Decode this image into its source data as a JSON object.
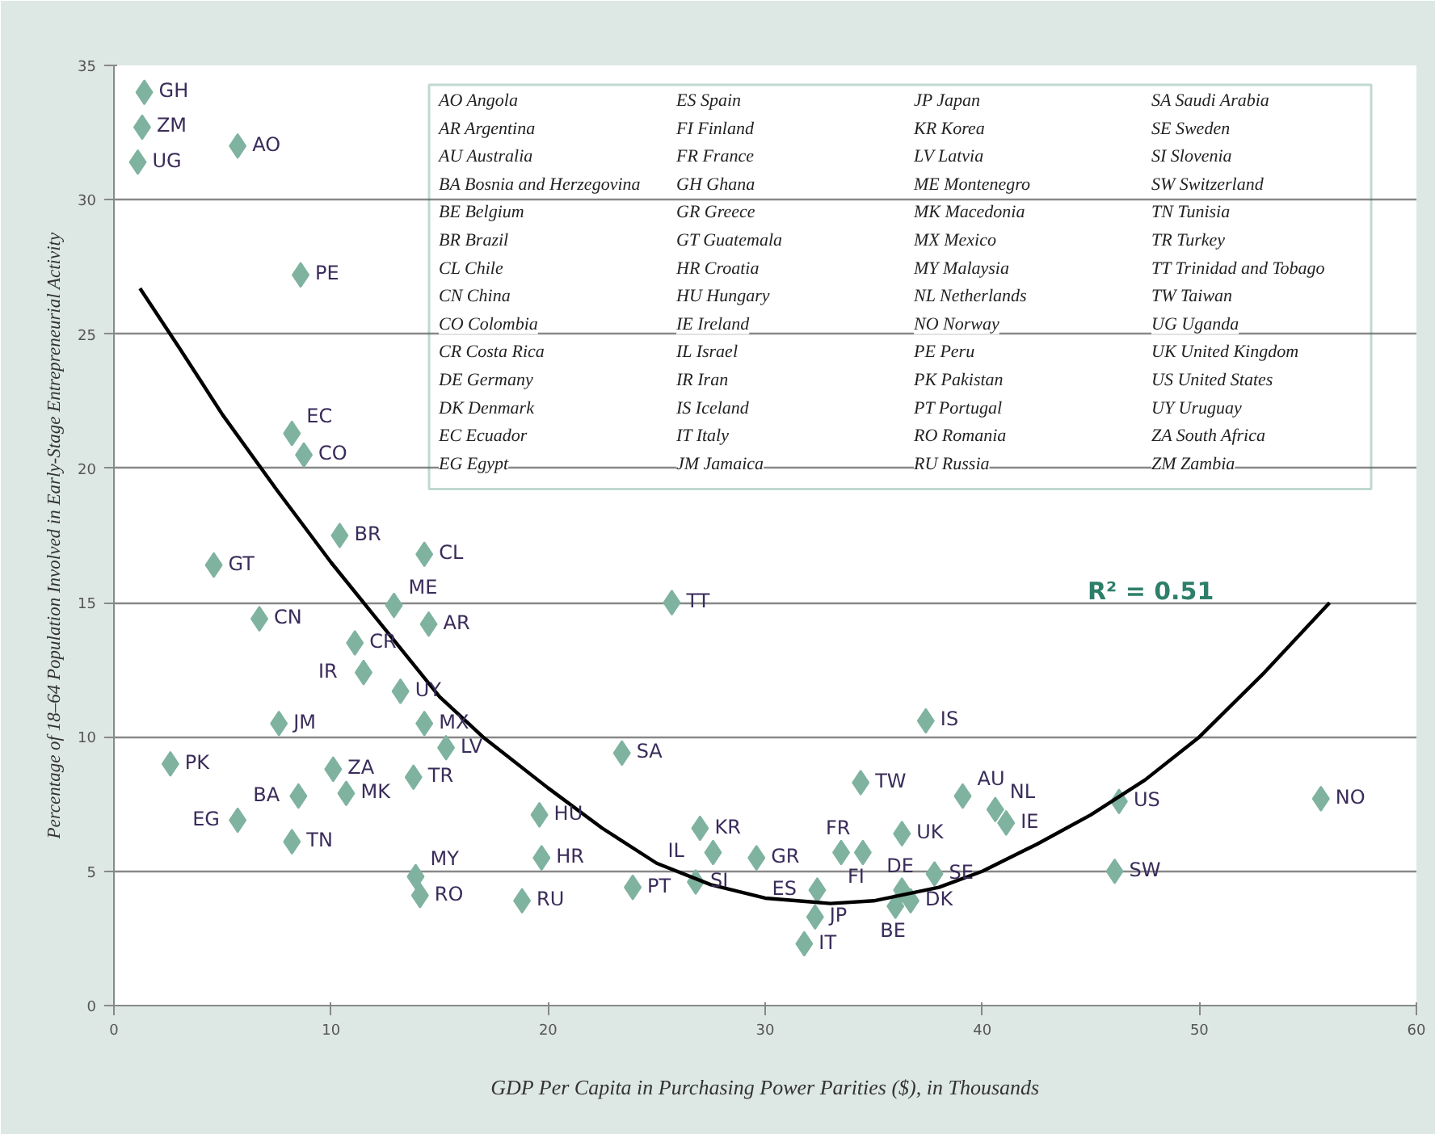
{
  "chart_data": {
    "type": "scatter",
    "xlabel": "GDP Per Capita in Purchasing Power Parities ($), in Thousands",
    "ylabel": "Percentage of 18–64 Population Involved in Early-Stage Entrepreneurial Activity",
    "xlim": [
      0,
      60
    ],
    "xticks": [
      0,
      10,
      20,
      30,
      40,
      50,
      60
    ],
    "ylim": [
      0,
      35
    ],
    "yticks": [
      0,
      5,
      10,
      15,
      20,
      25,
      30,
      35
    ],
    "grid": "y",
    "series": [
      {
        "color": "#7fb3a0",
        "marker": "diamond",
        "x": [
          1.4,
          1.3,
          1.1,
          5.7,
          8.6,
          8.2,
          8.75,
          10.4,
          14.3,
          4.6,
          12.9,
          14.5,
          6.7,
          25.7,
          11.1,
          11.5,
          13.2,
          14.3,
          7.6,
          2.6,
          10.1,
          15.3,
          13.8,
          8.5,
          10.7,
          5.7,
          8.2,
          19.6,
          19.7,
          13.9,
          14.1,
          18.8,
          23.9,
          23.4,
          27.0,
          27.6,
          26.8,
          29.6,
          33.5,
          34.5,
          32.4,
          32.3,
          31.8,
          34.4,
          37.4,
          36.3,
          36.3,
          36.0,
          36.7,
          37.8,
          39.1,
          40.6,
          41.1,
          46.3,
          46.1,
          55.6
        ],
        "values": [
          34.0,
          32.7,
          31.4,
          32.0,
          27.2,
          21.3,
          20.5,
          17.5,
          16.8,
          16.4,
          14.9,
          14.2,
          14.4,
          15.0,
          13.5,
          12.4,
          11.7,
          10.5,
          10.5,
          9.0,
          8.8,
          9.6,
          8.5,
          7.8,
          7.9,
          6.9,
          6.1,
          7.1,
          5.5,
          4.8,
          4.1,
          3.9,
          4.4,
          9.4,
          6.6,
          5.7,
          4.6,
          5.5,
          5.7,
          5.7,
          4.3,
          3.3,
          2.3,
          8.3,
          10.6,
          6.4,
          4.3,
          3.7,
          3.9,
          4.9,
          7.8,
          7.3,
          6.8,
          7.6,
          5.0,
          7.7
        ]
      },
      {
        "type": "line",
        "color": "#000000",
        "line_style": "solid",
        "x": [
          1.2,
          3,
          5,
          7.5,
          10,
          12.5,
          15,
          17,
          20,
          22.5,
          25,
          27.5,
          30,
          33,
          35,
          38,
          40,
          42.5,
          45,
          47.5,
          50,
          53,
          56
        ],
        "values": [
          26.7,
          24.5,
          22,
          19.2,
          16.5,
          14,
          11.5,
          10,
          8.1,
          6.6,
          5.3,
          4.5,
          4.0,
          3.8,
          3.9,
          4.4,
          5.0,
          6.0,
          7.1,
          8.4,
          10,
          12.4,
          15
        ]
      }
    ],
    "annotations": [
      {
        "text": "GH",
        "x": 1.4,
        "y": 34.0
      },
      {
        "text": "ZM",
        "x": 1.3,
        "y": 32.7
      },
      {
        "text": "UG",
        "x": 1.1,
        "y": 31.4
      },
      {
        "text": "AO",
        "x": 5.7,
        "y": 32.0
      },
      {
        "text": "PE",
        "x": 8.6,
        "y": 27.2
      },
      {
        "text": "EC",
        "x": 8.2,
        "y": 21.3
      },
      {
        "text": "CO",
        "x": 8.75,
        "y": 20.5
      },
      {
        "text": "BR",
        "x": 10.4,
        "y": 17.5
      },
      {
        "text": "CL",
        "x": 14.3,
        "y": 16.8
      },
      {
        "text": "GT",
        "x": 4.6,
        "y": 16.4
      },
      {
        "text": "ME",
        "x": 12.9,
        "y": 14.9
      },
      {
        "text": "AR",
        "x": 14.5,
        "y": 14.2
      },
      {
        "text": "CN",
        "x": 6.7,
        "y": 14.4
      },
      {
        "text": "TT",
        "x": 25.7,
        "y": 15.0
      },
      {
        "text": "CR",
        "x": 11.1,
        "y": 13.5
      },
      {
        "text": "IR",
        "x": 11.5,
        "y": 12.4
      },
      {
        "text": "UY",
        "x": 13.2,
        "y": 11.7
      },
      {
        "text": "MX",
        "x": 14.3,
        "y": 10.5
      },
      {
        "text": "JM",
        "x": 7.6,
        "y": 10.5
      },
      {
        "text": "PK",
        "x": 2.6,
        "y": 9.0
      },
      {
        "text": "ZA",
        "x": 10.1,
        "y": 8.8
      },
      {
        "text": "LV",
        "x": 15.3,
        "y": 9.6
      },
      {
        "text": "TR",
        "x": 13.8,
        "y": 8.5
      },
      {
        "text": "BA",
        "x": 8.5,
        "y": 7.8
      },
      {
        "text": "MK",
        "x": 10.7,
        "y": 7.9
      },
      {
        "text": "EG",
        "x": 5.7,
        "y": 6.9
      },
      {
        "text": "TN",
        "x": 8.2,
        "y": 6.1
      },
      {
        "text": "HU",
        "x": 19.6,
        "y": 7.1
      },
      {
        "text": "HR",
        "x": 19.7,
        "y": 5.5
      },
      {
        "text": "MY",
        "x": 13.9,
        "y": 4.8
      },
      {
        "text": "RO",
        "x": 14.1,
        "y": 4.1
      },
      {
        "text": "RU",
        "x": 18.8,
        "y": 3.9
      },
      {
        "text": "PT",
        "x": 23.9,
        "y": 4.4
      },
      {
        "text": "SA",
        "x": 23.4,
        "y": 9.4
      },
      {
        "text": "KR",
        "x": 27.0,
        "y": 6.6
      },
      {
        "text": "IL",
        "x": 27.6,
        "y": 5.7
      },
      {
        "text": "SI",
        "x": 26.8,
        "y": 4.6
      },
      {
        "text": "GR",
        "x": 29.6,
        "y": 5.5
      },
      {
        "text": "FR",
        "x": 33.5,
        "y": 5.7
      },
      {
        "text": "FI",
        "x": 34.5,
        "y": 5.7
      },
      {
        "text": "ES",
        "x": 32.4,
        "y": 4.3
      },
      {
        "text": "JP",
        "x": 32.3,
        "y": 3.3
      },
      {
        "text": "IT",
        "x": 31.8,
        "y": 2.3
      },
      {
        "text": "TW",
        "x": 34.4,
        "y": 8.3
      },
      {
        "text": "IS",
        "x": 37.4,
        "y": 10.6
      },
      {
        "text": "UK",
        "x": 36.3,
        "y": 6.4
      },
      {
        "text": "DE",
        "x": 36.3,
        "y": 4.3
      },
      {
        "text": "BE",
        "x": 36.0,
        "y": 3.7
      },
      {
        "text": "DK",
        "x": 36.7,
        "y": 3.9
      },
      {
        "text": "SE",
        "x": 37.8,
        "y": 4.9
      },
      {
        "text": "AU",
        "x": 39.1,
        "y": 7.8
      },
      {
        "text": "NL",
        "x": 40.6,
        "y": 7.3
      },
      {
        "text": "IE",
        "x": 41.1,
        "y": 6.8
      },
      {
        "text": "US",
        "x": 46.3,
        "y": 7.6
      },
      {
        "text": "SW",
        "x": 46.1,
        "y": 5.0
      },
      {
        "text": "NO",
        "x": 55.6,
        "y": 7.7
      },
      "R² = 0.51",
      "AO Angola",
      "AR Argentina",
      "AU Australia",
      "BA Bosnia and Herzegovina",
      "BE Belgium",
      "BR Brazil",
      "CL Chile",
      "CN China",
      "CO Colombia",
      "CR Costa Rica",
      "DE Germany",
      "DK Denmark",
      "EC Ecuador",
      "EG Egypt",
      "ES Spain",
      "FI Finland",
      "FR France",
      "GH Ghana",
      "GR Greece",
      "GT Guatemala",
      "HR Croatia",
      "HU Hungary",
      "IE Ireland",
      "IL Israel",
      "IR Iran",
      "IS Iceland",
      "IT Italy",
      "JM Jamaica",
      "JP Japan",
      "KR Korea",
      "LV Latvia",
      "ME Montenegro",
      "MK Macedonia",
      "MX Mexico",
      "MY Malaysia",
      "NL Netherlands",
      "NO Norway",
      "PE Peru",
      "PK Pakistan",
      "PT Portugal",
      "RO Romania",
      "RU Russia",
      "SA Saudi Arabia",
      "SE Sweden",
      "SI Slovenia",
      "SW Switzerland",
      "TN Tunisia",
      "TR Turkey",
      "TT Trinidad and Tobago",
      "TW Taiwan",
      "UG Uganda",
      "UK United Kingdom",
      "US United States",
      "UY Uruguay",
      "ZA South Africa",
      "ZM Zambia"
    ]
  }
}
